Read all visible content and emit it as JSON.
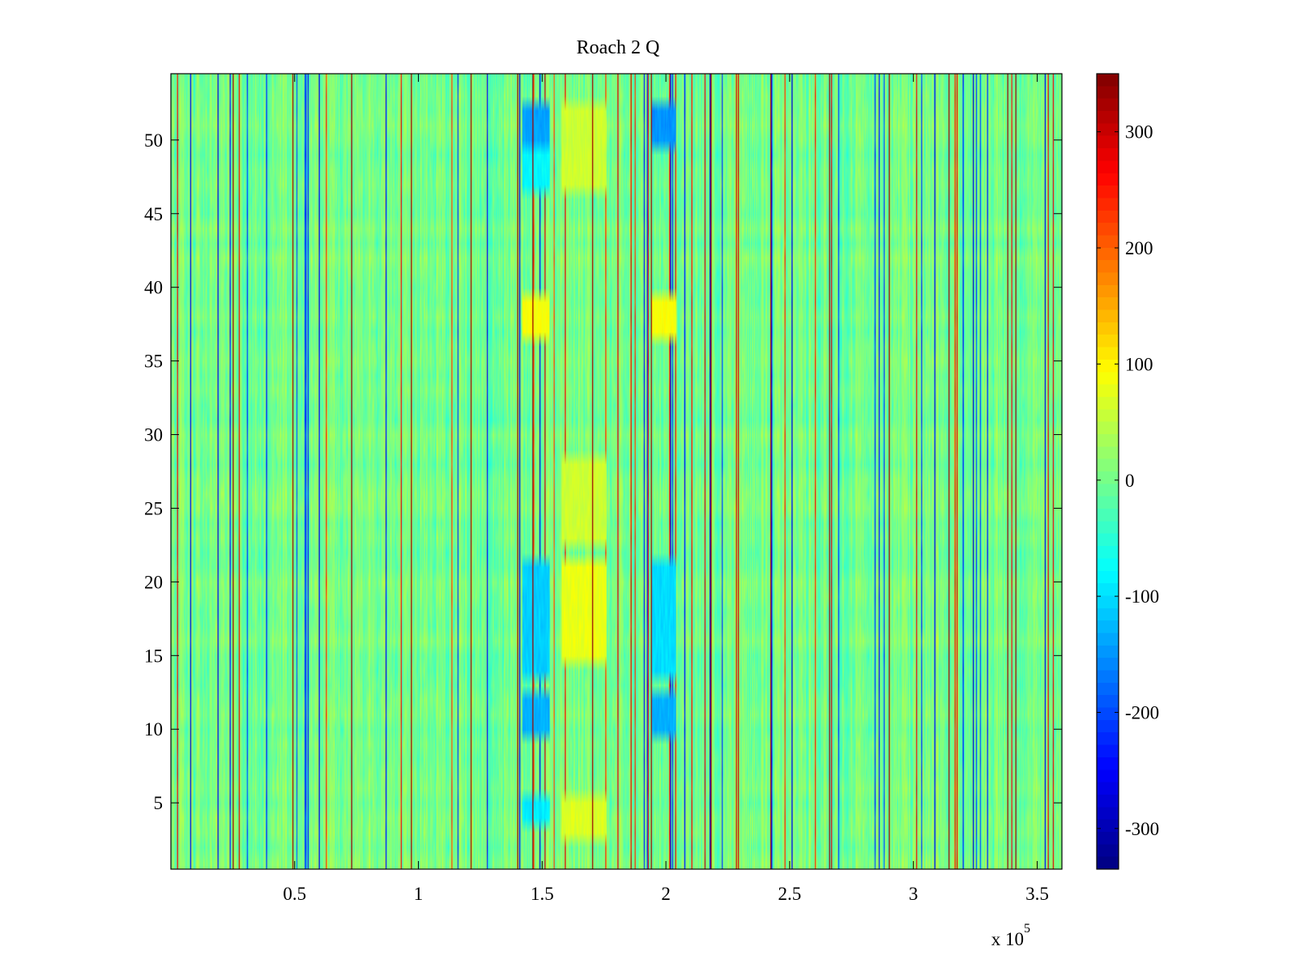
{
  "chart_data": {
    "type": "heatmap",
    "title": "Roach 2 Q",
    "xlabel": "",
    "ylabel": "",
    "x_range": [
      0,
      360000
    ],
    "y_range": [
      0.5,
      54.5
    ],
    "x_ticks": [
      50000,
      100000,
      150000,
      200000,
      250000,
      300000,
      350000
    ],
    "x_tick_labels": [
      "0.5",
      "1",
      "1.5",
      "2",
      "2.5",
      "3",
      "3.5"
    ],
    "x_exponent_label": "x 10",
    "x_exponent": "5",
    "y_ticks": [
      5,
      10,
      15,
      20,
      25,
      30,
      35,
      40,
      45,
      50
    ],
    "y_tick_labels": [
      "5",
      "10",
      "15",
      "20",
      "25",
      "30",
      "35",
      "40",
      "45",
      "50"
    ],
    "rows": 54,
    "colorbar": {
      "colormap": "jet",
      "range": [
        -335,
        350
      ],
      "ticks": [
        300,
        200,
        100,
        0,
        -100,
        -200,
        -300
      ],
      "tick_labels": [
        "300",
        "200",
        "100",
        "0",
        "-100",
        "-200",
        "-300"
      ]
    },
    "vertical_stripe_positions_x": [
      25000,
      49000,
      73000,
      97000,
      121000,
      140000,
      146000,
      170000,
      194000,
      218000,
      242000,
      266000,
      290000,
      314000,
      338000,
      341000
    ],
    "vertical_stripe_value": 330,
    "blobs": [
      {
        "x_range": [
          142000,
          153000
        ],
        "y_range": [
          16,
          19
        ],
        "value": -190
      },
      {
        "x_range": [
          142000,
          153000
        ],
        "y_range": [
          14,
          21
        ],
        "value": -110
      },
      {
        "x_range": [
          142000,
          153000
        ],
        "y_range": [
          10,
          12
        ],
        "value": -130
      },
      {
        "x_range": [
          142000,
          153000
        ],
        "y_range": [
          50,
          52
        ],
        "value": -140
      },
      {
        "x_range": [
          142000,
          153000
        ],
        "y_range": [
          47,
          49
        ],
        "value": -80
      },
      {
        "x_range": [
          142000,
          153000
        ],
        "y_range": [
          37,
          39
        ],
        "value": 90
      },
      {
        "x_range": [
          142000,
          153000
        ],
        "y_range": [
          4,
          5
        ],
        "value": -90
      },
      {
        "x_range": [
          158000,
          176000
        ],
        "y_range": [
          15,
          21
        ],
        "value": 80
      },
      {
        "x_range": [
          158000,
          176000
        ],
        "y_range": [
          47,
          52
        ],
        "value": 60
      },
      {
        "x_range": [
          158000,
          176000
        ],
        "y_range": [
          3,
          5
        ],
        "value": 70
      },
      {
        "x_range": [
          158000,
          176000
        ],
        "y_range": [
          23,
          28
        ],
        "value": 60
      },
      {
        "x_range": [
          194000,
          204000
        ],
        "y_range": [
          16,
          19
        ],
        "value": -200
      },
      {
        "x_range": [
          194000,
          204000
        ],
        "y_range": [
          14,
          21
        ],
        "value": -100
      },
      {
        "x_range": [
          194000,
          204000
        ],
        "y_range": [
          10,
          12
        ],
        "value": -130
      },
      {
        "x_range": [
          194000,
          204000
        ],
        "y_range": [
          50,
          52
        ],
        "value": -150
      },
      {
        "x_range": [
          194000,
          204000
        ],
        "y_range": [
          37,
          39
        ],
        "value": 90
      }
    ]
  }
}
